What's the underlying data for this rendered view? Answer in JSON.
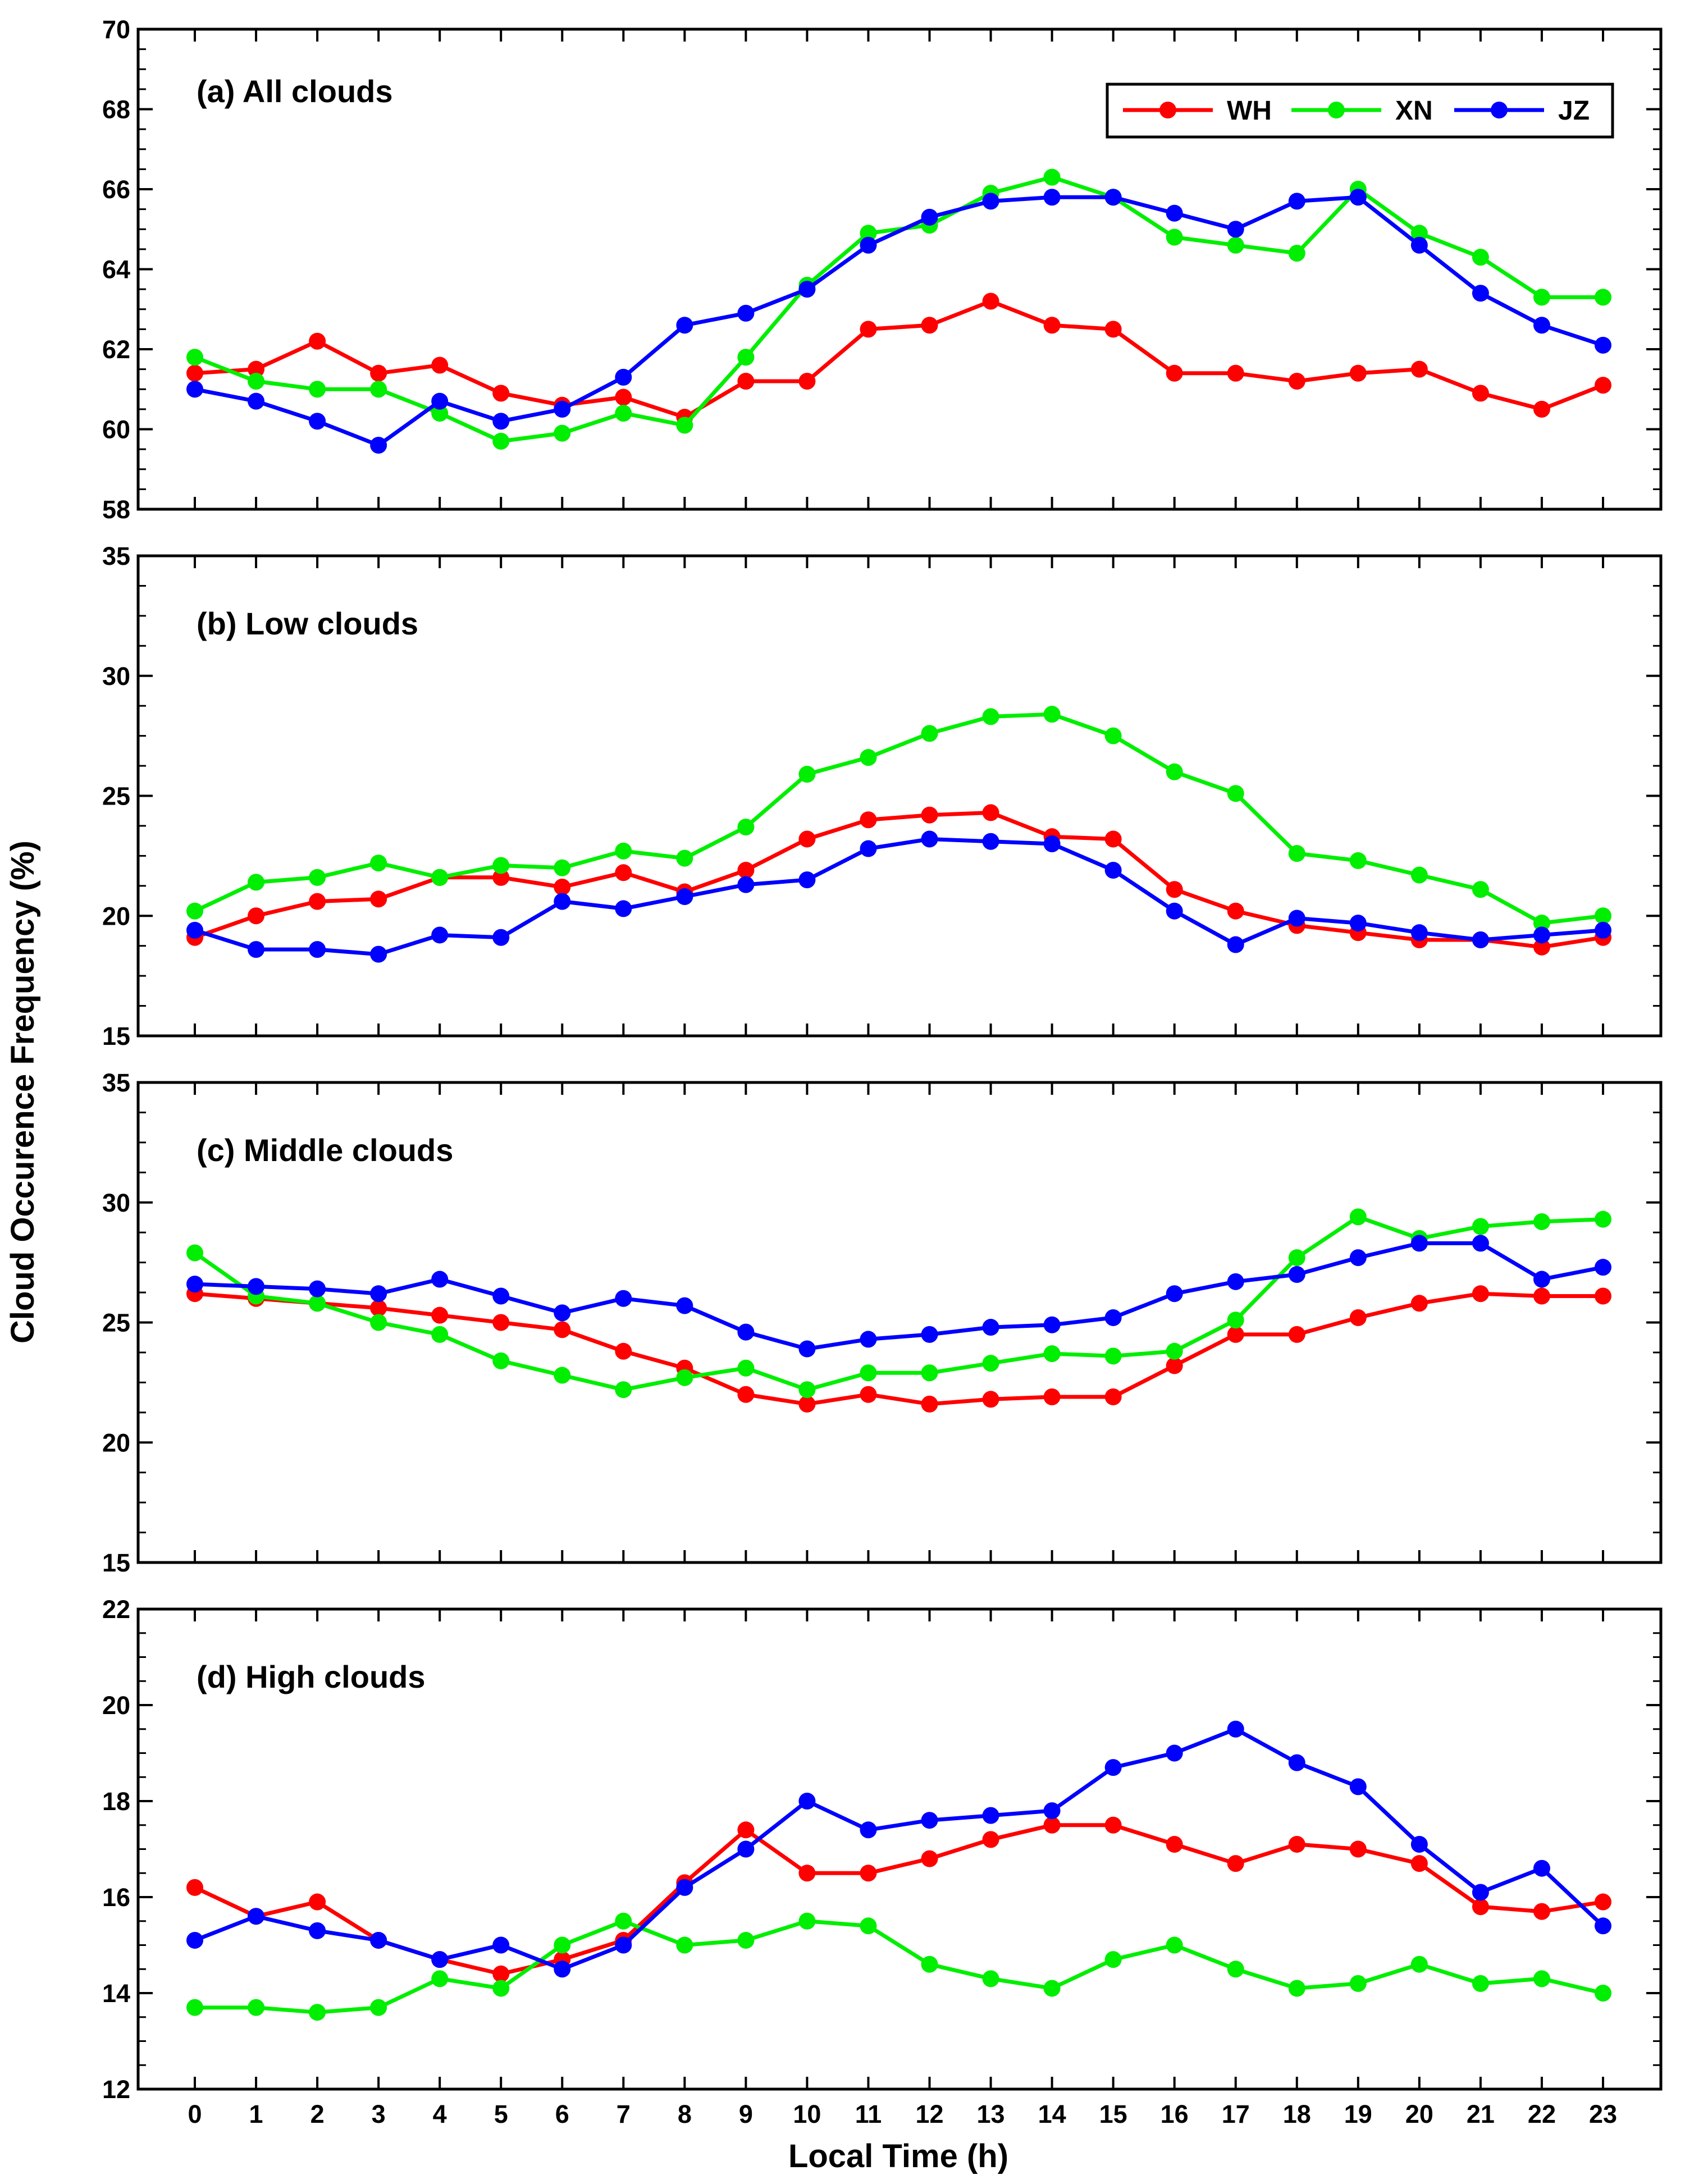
{
  "x_label": "Local Time (h)",
  "y_label": "Cloud Occurence Frequency (%)",
  "colors": {
    "WH": "#ff0000",
    "XN": "#00ee00",
    "JZ": "#0000ff"
  },
  "chart_data": [
    {
      "type": "line",
      "title": "(a) All clouds",
      "x": [
        0,
        1,
        2,
        3,
        4,
        5,
        6,
        7,
        8,
        9,
        10,
        11,
        12,
        13,
        14,
        15,
        16,
        17,
        18,
        19,
        20,
        21,
        22,
        23
      ],
      "ylim": [
        58,
        70
      ],
      "yticks": [
        58,
        60,
        62,
        64,
        66,
        68,
        70
      ],
      "legend": "top-right",
      "series": [
        {
          "name": "WH",
          "color": "#ff0000",
          "values": [
            61.4,
            61.5,
            62.2,
            61.4,
            61.6,
            60.9,
            60.6,
            60.8,
            60.3,
            61.2,
            61.2,
            62.5,
            62.6,
            63.2,
            62.6,
            62.5,
            61.4,
            61.4,
            61.2,
            61.4,
            61.5,
            60.9,
            60.5,
            61.1
          ]
        },
        {
          "name": "XN",
          "color": "#00ee00",
          "values": [
            61.8,
            61.2,
            61.0,
            61.0,
            60.4,
            59.7,
            59.9,
            60.4,
            60.1,
            61.8,
            63.6,
            64.9,
            65.1,
            65.9,
            66.3,
            65.8,
            64.8,
            64.6,
            64.4,
            66.0,
            64.9,
            64.3,
            63.3,
            63.3
          ]
        },
        {
          "name": "JZ",
          "color": "#0000ff",
          "values": [
            61.0,
            60.7,
            60.2,
            59.6,
            60.7,
            60.2,
            60.5,
            61.3,
            62.6,
            62.9,
            63.5,
            64.6,
            65.3,
            65.7,
            65.8,
            65.8,
            65.4,
            65.0,
            65.7,
            65.8,
            64.6,
            63.4,
            62.6,
            62.1
          ]
        }
      ]
    },
    {
      "type": "line",
      "title": "(b) Low clouds",
      "x": [
        0,
        1,
        2,
        3,
        4,
        5,
        6,
        7,
        8,
        9,
        10,
        11,
        12,
        13,
        14,
        15,
        16,
        17,
        18,
        19,
        20,
        21,
        22,
        23
      ],
      "ylim": [
        15,
        35
      ],
      "yticks": [
        15,
        20,
        25,
        30,
        35
      ],
      "series": [
        {
          "name": "WH",
          "color": "#ff0000",
          "values": [
            19.1,
            20.0,
            20.6,
            20.7,
            21.6,
            21.6,
            21.2,
            21.8,
            21.0,
            21.9,
            23.2,
            24.0,
            24.2,
            24.3,
            23.3,
            23.2,
            21.1,
            20.2,
            19.6,
            19.3,
            19.0,
            19.0,
            18.7,
            19.1
          ]
        },
        {
          "name": "XN",
          "color": "#00ee00",
          "values": [
            20.2,
            21.4,
            21.6,
            22.2,
            21.6,
            22.1,
            22.0,
            22.7,
            22.4,
            23.7,
            25.9,
            26.6,
            27.6,
            28.3,
            28.4,
            27.5,
            26.0,
            25.1,
            22.6,
            22.3,
            21.7,
            21.1,
            19.7,
            20.0
          ]
        },
        {
          "name": "JZ",
          "color": "#0000ff",
          "values": [
            19.4,
            18.6,
            18.6,
            18.4,
            19.2,
            19.1,
            20.6,
            20.3,
            20.8,
            21.3,
            21.5,
            22.8,
            23.2,
            23.1,
            23.0,
            21.9,
            20.2,
            18.8,
            19.9,
            19.7,
            19.3,
            19.0,
            19.2,
            19.4
          ]
        }
      ]
    },
    {
      "type": "line",
      "title": "(c) Middle clouds",
      "x": [
        0,
        1,
        2,
        3,
        4,
        5,
        6,
        7,
        8,
        9,
        10,
        11,
        12,
        13,
        14,
        15,
        16,
        17,
        18,
        19,
        20,
        21,
        22,
        23
      ],
      "ylim": [
        15,
        35
      ],
      "yticks": [
        15,
        20,
        25,
        30,
        35
      ],
      "series": [
        {
          "name": "WH",
          "color": "#ff0000",
          "values": [
            26.2,
            26.0,
            25.8,
            25.6,
            25.3,
            25.0,
            24.7,
            23.8,
            23.1,
            22.0,
            21.6,
            22.0,
            21.6,
            21.8,
            21.9,
            21.9,
            23.2,
            24.5,
            24.5,
            25.2,
            25.8,
            26.2,
            26.1,
            26.1
          ]
        },
        {
          "name": "XN",
          "color": "#00ee00",
          "values": [
            27.9,
            26.1,
            25.8,
            25.0,
            24.5,
            23.4,
            22.8,
            22.2,
            22.7,
            23.1,
            22.2,
            22.9,
            22.9,
            23.3,
            23.7,
            23.6,
            23.8,
            25.1,
            27.7,
            29.4,
            28.5,
            29.0,
            29.2,
            29.3
          ]
        },
        {
          "name": "JZ",
          "color": "#0000ff",
          "values": [
            26.6,
            26.5,
            26.4,
            26.2,
            26.8,
            26.1,
            25.4,
            26.0,
            25.7,
            24.6,
            23.9,
            24.3,
            24.5,
            24.8,
            24.9,
            25.2,
            26.2,
            26.7,
            27.0,
            27.7,
            28.3,
            28.3,
            26.8,
            27.3
          ]
        }
      ]
    },
    {
      "type": "line",
      "title": "(d) High clouds",
      "x": [
        0,
        1,
        2,
        3,
        4,
        5,
        6,
        7,
        8,
        9,
        10,
        11,
        12,
        13,
        14,
        15,
        16,
        17,
        18,
        19,
        20,
        21,
        22,
        23
      ],
      "ylim": [
        12,
        22
      ],
      "yticks": [
        12,
        14,
        16,
        18,
        20,
        22
      ],
      "series": [
        {
          "name": "WH",
          "color": "#ff0000",
          "values": [
            16.2,
            15.6,
            15.9,
            15.1,
            14.7,
            14.4,
            14.7,
            15.1,
            16.3,
            17.4,
            16.5,
            16.5,
            16.8,
            17.2,
            17.5,
            17.5,
            17.1,
            16.7,
            17.1,
            17.0,
            16.7,
            15.8,
            15.7,
            15.9
          ]
        },
        {
          "name": "XN",
          "color": "#00ee00",
          "values": [
            13.7,
            13.7,
            13.6,
            13.7,
            14.3,
            14.1,
            15.0,
            15.5,
            15.0,
            15.1,
            15.5,
            15.4,
            14.6,
            14.3,
            14.1,
            14.7,
            15.0,
            14.5,
            14.1,
            14.2,
            14.6,
            14.2,
            14.3,
            14.0
          ]
        },
        {
          "name": "JZ",
          "color": "#0000ff",
          "values": [
            15.1,
            15.6,
            15.3,
            15.1,
            14.7,
            15.0,
            14.5,
            15.0,
            16.2,
            17.0,
            18.0,
            17.4,
            17.6,
            17.7,
            17.8,
            18.7,
            19.0,
            19.5,
            18.8,
            18.3,
            17.1,
            16.1,
            16.6,
            15.4
          ]
        }
      ]
    }
  ]
}
